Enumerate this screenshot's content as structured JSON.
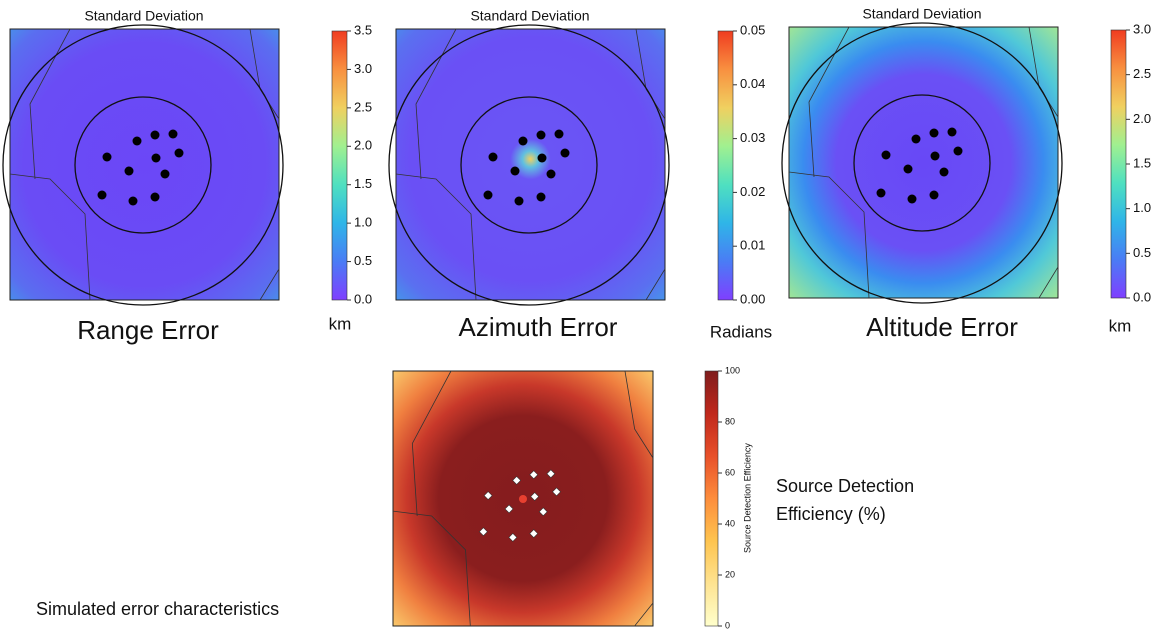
{
  "chart_data": [
    {
      "type": "heatmap",
      "title": "Standard Deviation",
      "caption": "Range Error",
      "colorbar_label": "km",
      "colormap": "rainbow",
      "clim": [
        0,
        3.5
      ],
      "cticks": [
        {
          "value": 0,
          "label": "0.0"
        },
        0.5,
        {
          "value": 1,
          "label": "1.0"
        },
        1.5,
        {
          "value": 2,
          "label": "2.0"
        },
        2.5,
        {
          "value": 3,
          "label": "3.0"
        },
        3.5
      ]
    },
    {
      "type": "heatmap",
      "title": "Standard Deviation",
      "caption": "Azimuth Error",
      "colorbar_label": "Radians",
      "colormap": "rainbow",
      "clim": [
        0,
        0.05
      ],
      "cticks": [
        {
          "value": 0,
          "label": "0.00"
        },
        {
          "value": 0.01,
          "label": "0.01"
        },
        {
          "value": 0.02,
          "label": "0.02"
        },
        {
          "value": 0.03,
          "label": "0.03"
        },
        {
          "value": 0.04,
          "label": "0.04"
        },
        {
          "value": 0.05,
          "label": "0.05"
        }
      ]
    },
    {
      "type": "heatmap",
      "title": "Standard Deviation",
      "caption": "Altitude Error",
      "colorbar_label": "km",
      "colormap": "rainbow",
      "clim": [
        0,
        3
      ],
      "cticks": [
        {
          "value": 0,
          "label": "0.0"
        },
        0.5,
        {
          "value": 1,
          "label": "1.0"
        },
        1.5,
        {
          "value": 2,
          "label": "2.0"
        },
        2.5,
        {
          "value": 3,
          "label": "3.0"
        }
      ]
    },
    {
      "type": "heatmap",
      "caption": "Source Detection Efficiency (%)",
      "colorbar_label": "Source Detection Efficiency",
      "colormap": "YlOrRd",
      "clim": [
        0,
        100
      ],
      "cticks": [
        0,
        20,
        40,
        60,
        80,
        100
      ]
    }
  ],
  "caption": "Simulated error characteristics"
}
